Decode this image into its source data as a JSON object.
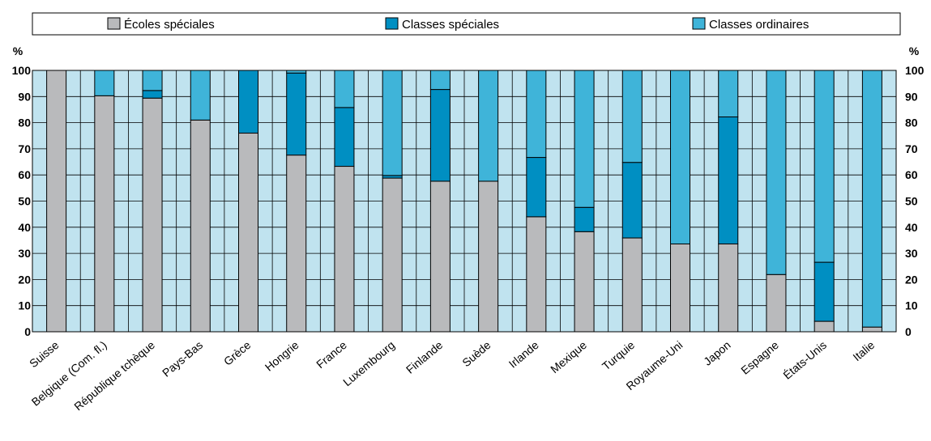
{
  "chart_data": {
    "type": "bar",
    "stacked": true,
    "orientation": "vertical",
    "y_unit_label": "%",
    "ylim": [
      0,
      100
    ],
    "yticks": [
      0,
      10,
      20,
      30,
      40,
      50,
      60,
      70,
      80,
      90,
      100
    ],
    "grid": true,
    "legend_position": "top",
    "categories": [
      "Suisse",
      "Belgique (Com. fl.)",
      "République tchèque",
      "Pays-Bas",
      "Grèce",
      "Hongrie",
      "France",
      "Luxembourg",
      "Finlande",
      "Suède",
      "Irlande",
      "Mexique",
      "Turquie",
      "Royaume-Uni",
      "Japon",
      "Espagne",
      "États-Unis",
      "Italie"
    ],
    "series": [
      {
        "name": "Écoles spéciales",
        "color": "#b9babc",
        "values": [
          100,
          90.3,
          89.4,
          81,
          76,
          67.6,
          63.3,
          58.8,
          57.6,
          57.6,
          44,
          38.3,
          35.9,
          33.6,
          33.6,
          21.9,
          4,
          1.8
        ]
      },
      {
        "name": "Classes spéciales",
        "color": "#008fc2",
        "values": [
          0,
          0,
          2.9,
          0,
          24,
          31.4,
          22.5,
          1,
          35.1,
          0,
          22.7,
          9.3,
          28.9,
          0,
          48.6,
          0,
          22.6,
          0
        ]
      },
      {
        "name": "Classes ordinaires",
        "color": "#3fb4d9",
        "values": [
          0,
          9.7,
          7.7,
          19,
          0,
          1,
          14.2,
          40.2,
          7.3,
          42.4,
          33.3,
          52.4,
          35.2,
          66.4,
          17.8,
          78.1,
          73.4,
          98.2
        ]
      }
    ],
    "plot_background": "#c0e3ef"
  }
}
